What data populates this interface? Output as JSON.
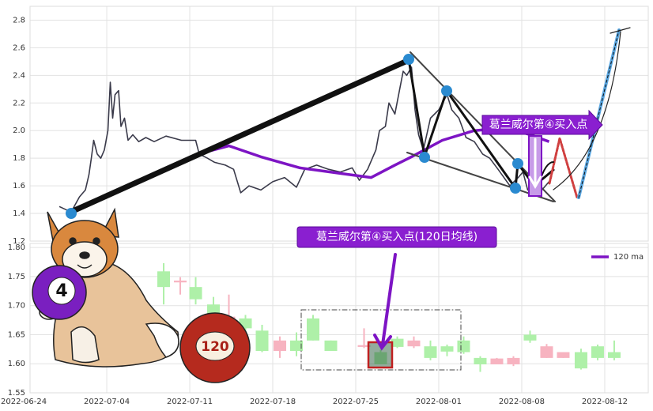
{
  "chart_data": [
    {
      "type": "line",
      "xlim": [
        0.53,
        52.67
      ],
      "ylim": [
        1.2,
        2.9
      ],
      "yticks": [
        1.2,
        1.4,
        1.6,
        1.8,
        {
          "value": 2,
          "label": "2.0"
        },
        2.2,
        2.4,
        2.6,
        2.8
      ],
      "grid": true,
      "annotation": "葛兰威尔第④买入点",
      "series": [
        {
          "color": "#3a3a4a",
          "x": [
            3,
            4,
            4.7,
            5.2,
            5.5,
            5.7,
            5.9,
            6.2,
            6.5,
            6.8,
            7.1,
            7.3,
            7.5,
            7.7,
            8,
            8.2,
            8.5,
            8.8,
            9.2,
            9.7,
            10.3,
            11,
            12,
            13.3,
            14.5,
            14.8,
            15.5,
            16.1,
            17,
            17.7,
            18.3,
            19,
            20,
            21,
            22,
            23,
            23.7,
            24.7,
            25.7,
            26.7,
            27.7,
            28.3,
            29,
            29.7,
            30,
            30.5,
            30.8,
            31.3,
            32,
            32.3,
            32.7,
            33,
            33.3,
            33.7,
            34.3,
            35,
            35.7,
            36.1,
            36.7,
            37.3,
            38,
            38.7,
            39.3,
            40,
            41,
            41.7,
            42.1,
            42.5,
            43,
            43.7,
            44.3
          ],
          "values": [
            1.45,
            1.41,
            1.52,
            1.57,
            1.68,
            1.8,
            1.93,
            1.83,
            1.8,
            1.86,
            2.0,
            2.35,
            2.09,
            2.26,
            2.29,
            2.03,
            2.09,
            1.93,
            1.97,
            1.92,
            1.95,
            1.92,
            1.96,
            1.93,
            1.93,
            1.83,
            1.8,
            1.77,
            1.75,
            1.72,
            1.55,
            1.6,
            1.57,
            1.63,
            1.66,
            1.59,
            1.72,
            1.75,
            1.72,
            1.7,
            1.73,
            1.64,
            1.72,
            1.86,
            2.0,
            2.03,
            2.2,
            2.12,
            2.43,
            2.4,
            2.46,
            2.15,
            1.97,
            1.86,
            2.09,
            2.15,
            2.26,
            2.15,
            2.09,
            1.95,
            1.92,
            1.83,
            1.8,
            1.72,
            1.6,
            1.66,
            1.7,
            1.57,
            1.62,
            1.57,
            1.63
          ]
        },
        {
          "name": "120 ma",
          "color": "#7d14c4",
          "x": [
            11.9,
            14.7,
            17.3,
            20,
            23.3,
            26.7,
            29.3,
            31.3,
            32.7,
            35.3,
            38,
            40.7,
            42.7,
            44.3
          ],
          "values": [
            1.72,
            1.83,
            1.89,
            1.81,
            1.73,
            1.69,
            1.66,
            1.75,
            1.81,
            1.93,
            2.0,
            2.02,
            1.97,
            1.92
          ]
        }
      ]
    },
    {
      "type": "candlestick",
      "xlim": [
        0.53,
        52.67
      ],
      "ylim": [
        1.55,
        1.807
      ],
      "xticks": [
        {
          "value": 0,
          "label": "2022-06-24"
        },
        {
          "value": 7,
          "label": "2022-07-04"
        },
        {
          "value": 14,
          "label": "2022-07-11"
        },
        {
          "value": 21,
          "label": "2022-07-18"
        },
        {
          "value": 28,
          "label": "2022-07-25"
        },
        {
          "value": 35,
          "label": "2022-08-01"
        },
        {
          "value": 42,
          "label": "2022-08-08"
        },
        {
          "value": 49,
          "label": "2022-08-12"
        }
      ],
      "yticks": [
        1.55,
        {
          "value": 1.6,
          "label": "1.60"
        },
        1.65,
        {
          "value": 1.7,
          "label": "1.70"
        },
        1.75,
        {
          "value": 1.8,
          "label": "1.80"
        }
      ],
      "grid": true,
      "up_color": "#f7b3c0",
      "down_color": "#aef0a8",
      "annotation": "葛兰威尔第④买入点(120日均线)",
      "x": [
        11.8,
        13.2,
        14.5,
        16,
        17.3,
        18.7,
        20.1,
        21.6,
        23,
        24.4,
        25.9,
        28.7,
        30.1,
        31.5,
        32.9,
        34.3,
        35.7,
        37.1,
        38.5,
        39.9,
        41.3,
        42.7,
        44.1,
        45.5,
        47,
        48.4,
        49.8
      ],
      "open": [
        1.759,
        1.74,
        1.732,
        1.702,
        1.672,
        1.678,
        1.657,
        1.622,
        1.64,
        1.678,
        1.64,
        1.629,
        1.62,
        1.643,
        1.63,
        1.63,
        1.63,
        1.64,
        1.61,
        1.599,
        1.599,
        1.65,
        1.61,
        1.61,
        1.62,
        1.63,
        1.62
      ],
      "close": [
        1.732,
        1.743,
        1.711,
        1.674,
        1.681,
        1.661,
        1.622,
        1.64,
        1.622,
        1.64,
        1.622,
        1.632,
        1.599,
        1.629,
        1.64,
        1.61,
        1.621,
        1.62,
        1.599,
        1.609,
        1.61,
        1.64,
        1.63,
        1.62,
        1.592,
        1.61,
        1.61
      ],
      "high": [
        1.773,
        1.749,
        1.749,
        1.715,
        1.719,
        1.684,
        1.667,
        1.647,
        1.654,
        1.684,
        1.64,
        1.661,
        1.624,
        1.647,
        1.647,
        1.64,
        1.633,
        1.647,
        1.613,
        1.61,
        1.613,
        1.657,
        1.634,
        1.62,
        1.626,
        1.633,
        1.64
      ],
      "low": [
        1.702,
        1.719,
        1.702,
        1.667,
        1.661,
        1.654,
        1.62,
        1.61,
        1.613,
        1.64,
        1.622,
        1.627,
        1.599,
        1.627,
        1.627,
        1.606,
        1.613,
        1.617,
        1.586,
        1.599,
        1.596,
        1.636,
        1.61,
        1.61,
        1.59,
        1.606,
        1.606
      ]
    }
  ],
  "illustration": {
    "ball_labels": [
      "4",
      "120"
    ]
  }
}
